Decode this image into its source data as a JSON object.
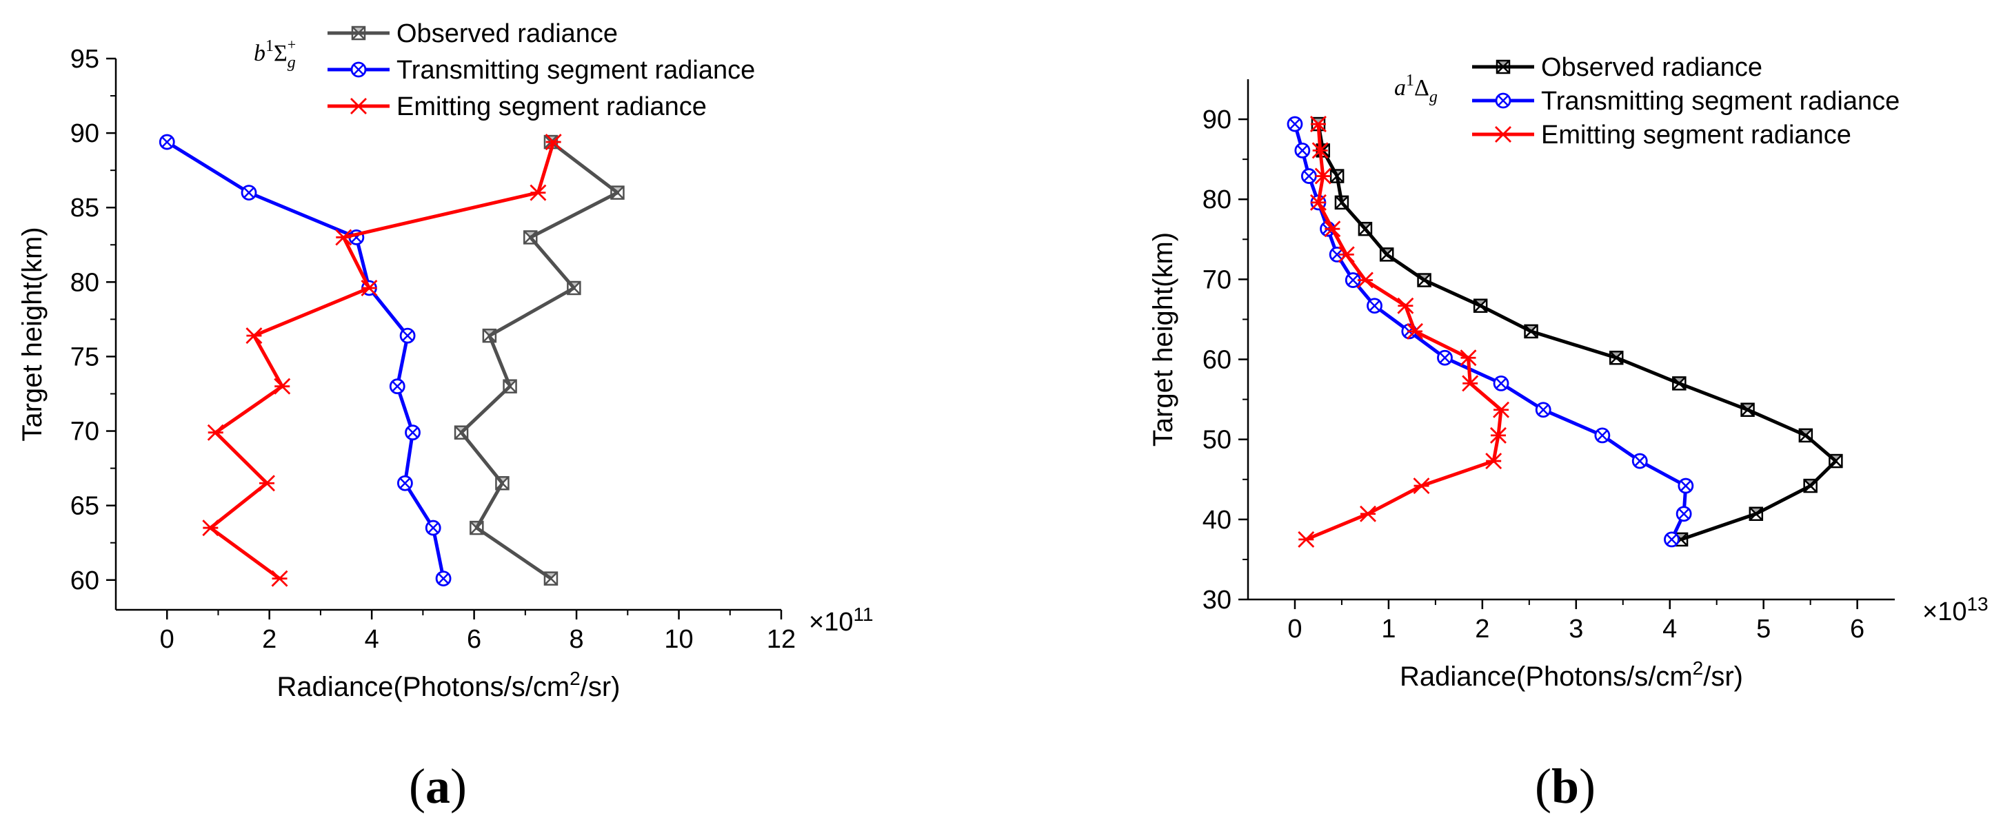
{
  "figure": {
    "panel_a_label_open": "(",
    "panel_a_label_letter": "a",
    "panel_a_label_close": ")",
    "panel_b_label_open": "(",
    "panel_b_label_letter": "b",
    "panel_b_label_close": ")"
  },
  "chart_data": [
    {
      "type": "line",
      "panel": "a",
      "annotation": "b¹Σg⁺",
      "annotation_parts": {
        "base": "b",
        "sup": "1",
        "sym": "Σ",
        "sub": "g",
        "sup2": "+"
      },
      "xlabel": "Radiance(Photons/s/cm²/sr)",
      "xlabel_parts": {
        "pre": "Radiance(Photons/s/cm",
        "sup": "2",
        "post": "/sr)"
      },
      "ylabel": "Target height(km)",
      "xlim": [
        -1,
        12
      ],
      "ylim": [
        58,
        95
      ],
      "xticks": [
        0,
        2,
        4,
        6,
        8,
        10,
        12
      ],
      "xtick_labels": [
        "0",
        "2",
        "4",
        "6",
        "8",
        "10",
        "12"
      ],
      "yticks": [
        60,
        65,
        70,
        75,
        80,
        85,
        90,
        95
      ],
      "ytick_labels": [
        "60",
        "65",
        "70",
        "75",
        "80",
        "85",
        "90",
        "95"
      ],
      "x_multiplier": "×10",
      "x_multiplier_exp": "11",
      "legend_position": "top-right",
      "series": [
        {
          "name": "Observed radiance",
          "color": "#505050",
          "marker": "hourglass-square",
          "points": [
            [
              7.5,
              60.1
            ],
            [
              6.05,
              63.5
            ],
            [
              6.55,
              66.5
            ],
            [
              5.75,
              69.9
            ],
            [
              6.7,
              73.0
            ],
            [
              6.3,
              76.4
            ],
            [
              7.95,
              79.6
            ],
            [
              7.1,
              83.0
            ],
            [
              8.8,
              86.0
            ],
            [
              7.5,
              89.4
            ]
          ]
        },
        {
          "name": "Transmitting segment radiance",
          "color": "#0000ff",
          "marker": "circle-x",
          "points": [
            [
              5.4,
              60.1
            ],
            [
              5.2,
              63.5
            ],
            [
              4.65,
              66.5
            ],
            [
              4.8,
              69.9
            ],
            [
              4.5,
              73.0
            ],
            [
              4.7,
              76.4
            ],
            [
              3.95,
              79.6
            ],
            [
              3.7,
              83.0
            ],
            [
              1.6,
              86.0
            ],
            [
              0.0,
              89.4
            ]
          ]
        },
        {
          "name": "Emitting segment radiance",
          "color": "#ff0000",
          "marker": "asterisk-x",
          "points": [
            [
              2.2,
              60.1
            ],
            [
              0.85,
              63.5
            ],
            [
              1.95,
              66.5
            ],
            [
              0.95,
              69.9
            ],
            [
              2.25,
              73.0
            ],
            [
              1.7,
              76.4
            ],
            [
              3.95,
              79.6
            ],
            [
              3.45,
              83.0
            ],
            [
              7.25,
              86.0
            ],
            [
              7.55,
              89.4
            ]
          ]
        }
      ]
    },
    {
      "type": "line",
      "panel": "b",
      "annotation": "a¹Δg",
      "annotation_parts": {
        "base": "a",
        "sup": "1",
        "sym": "Δ",
        "sub": "g"
      },
      "xlabel": "Radiance(Photons/s/cm²/sr)",
      "xlabel_parts": {
        "pre": "Radiance(Photons/s/cm",
        "sup": "2",
        "post": "/sr)"
      },
      "ylabel": "Target height(km)",
      "xlim": [
        -0.5,
        6.4
      ],
      "ylim": [
        30,
        95
      ],
      "xticks": [
        0,
        1,
        2,
        3,
        4,
        5,
        6
      ],
      "xtick_labels": [
        "0",
        "1",
        "2",
        "3",
        "4",
        "5",
        "6"
      ],
      "yticks": [
        30,
        40,
        50,
        60,
        70,
        80,
        90
      ],
      "ytick_labels": [
        "30",
        "40",
        "50",
        "60",
        "70",
        "80",
        "90"
      ],
      "x_multiplier": "×10",
      "x_multiplier_exp": "13",
      "legend_position": "top-right",
      "series": [
        {
          "name": "Observed radiance",
          "color": "#000000",
          "marker": "hourglass-square",
          "points": [
            [
              4.12,
              37.5
            ],
            [
              4.92,
              40.7
            ],
            [
              5.5,
              44.2
            ],
            [
              5.77,
              47.3
            ],
            [
              5.45,
              50.5
            ],
            [
              4.83,
              53.7
            ],
            [
              4.1,
              57.0
            ],
            [
              3.43,
              60.2
            ],
            [
              2.52,
              63.5
            ],
            [
              1.98,
              66.7
            ],
            [
              1.38,
              69.9
            ],
            [
              0.98,
              73.1
            ],
            [
              0.75,
              76.3
            ],
            [
              0.5,
              79.6
            ],
            [
              0.45,
              82.9
            ],
            [
              0.3,
              86.1
            ],
            [
              0.25,
              89.4
            ]
          ]
        },
        {
          "name": "Transmitting segment radiance",
          "color": "#0000ff",
          "marker": "circle-x",
          "points": [
            [
              4.02,
              37.5
            ],
            [
              4.15,
              40.7
            ],
            [
              4.17,
              44.2
            ],
            [
              3.68,
              47.3
            ],
            [
              3.28,
              50.5
            ],
            [
              2.65,
              53.7
            ],
            [
              2.2,
              57.0
            ],
            [
              1.6,
              60.2
            ],
            [
              1.22,
              63.5
            ],
            [
              0.85,
              66.7
            ],
            [
              0.62,
              69.9
            ],
            [
              0.45,
              73.1
            ],
            [
              0.35,
              76.3
            ],
            [
              0.25,
              79.6
            ],
            [
              0.15,
              82.9
            ],
            [
              0.08,
              86.1
            ],
            [
              0.0,
              89.4
            ]
          ]
        },
        {
          "name": "Emitting segment radiance",
          "color": "#ff0000",
          "marker": "asterisk-x",
          "points": [
            [
              0.12,
              37.5
            ],
            [
              0.78,
              40.7
            ],
            [
              1.35,
              44.2
            ],
            [
              2.12,
              47.3
            ],
            [
              2.17,
              50.5
            ],
            [
              2.2,
              53.7
            ],
            [
              1.87,
              57.0
            ],
            [
              1.85,
              60.2
            ],
            [
              1.28,
              63.5
            ],
            [
              1.18,
              66.7
            ],
            [
              0.75,
              69.9
            ],
            [
              0.55,
              73.1
            ],
            [
              0.4,
              76.3
            ],
            [
              0.25,
              79.6
            ],
            [
              0.3,
              82.9
            ],
            [
              0.27,
              86.1
            ],
            [
              0.25,
              89.4
            ]
          ]
        }
      ]
    }
  ]
}
